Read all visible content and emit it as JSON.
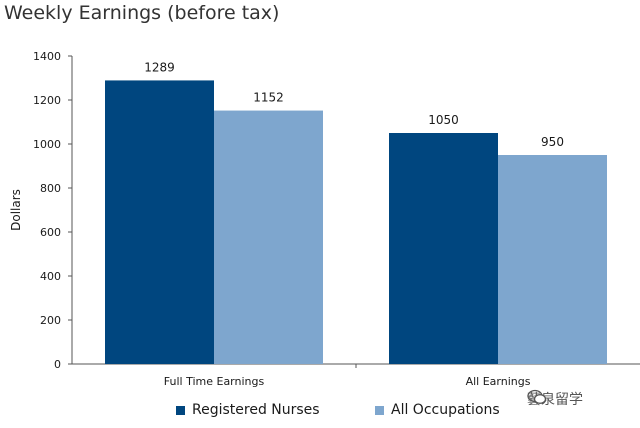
{
  "chart_data": {
    "type": "bar",
    "title": "Weekly Earnings (before tax)",
    "ylabel": "Dollars",
    "xlabel": "",
    "ylim": [
      0,
      1400
    ],
    "yticks": [
      0,
      200,
      400,
      600,
      800,
      1000,
      1200,
      1400
    ],
    "categories": [
      "Full Time Earnings",
      "All Earnings"
    ],
    "series": [
      {
        "name": "Registered Nurses",
        "color": "#00467f",
        "values": [
          1289,
          1050
        ]
      },
      {
        "name": "All Occupations",
        "color": "#7ea6ce",
        "values": [
          1152,
          950
        ]
      }
    ],
    "legend_position": "bottom",
    "grid": false
  },
  "watermark": {
    "text": "藝泉留学",
    "icon": "wechat-icon"
  }
}
